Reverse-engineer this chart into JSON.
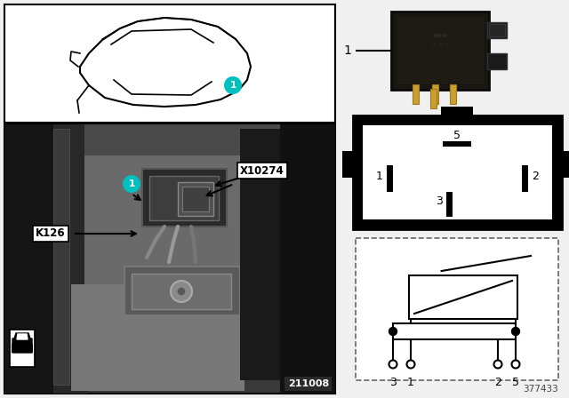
{
  "bg_color": "#f0f0f0",
  "car_outline_color": "#000000",
  "teal_color": "#00BFBF",
  "black": "#000000",
  "white": "#ffffff",
  "code1": "211008",
  "code2": "377433",
  "k126_label": "K126",
  "x10274_label": "X10274",
  "photo_dark1": "#1a1a1a",
  "photo_dark2": "#2d2d2d",
  "photo_mid": "#555555",
  "photo_light": "#888888",
  "photo_lighter": "#aaaaaa",
  "relay_dark": "#1a1612",
  "relay_mid": "#2a2218",
  "relay_pin": "#b8902a"
}
